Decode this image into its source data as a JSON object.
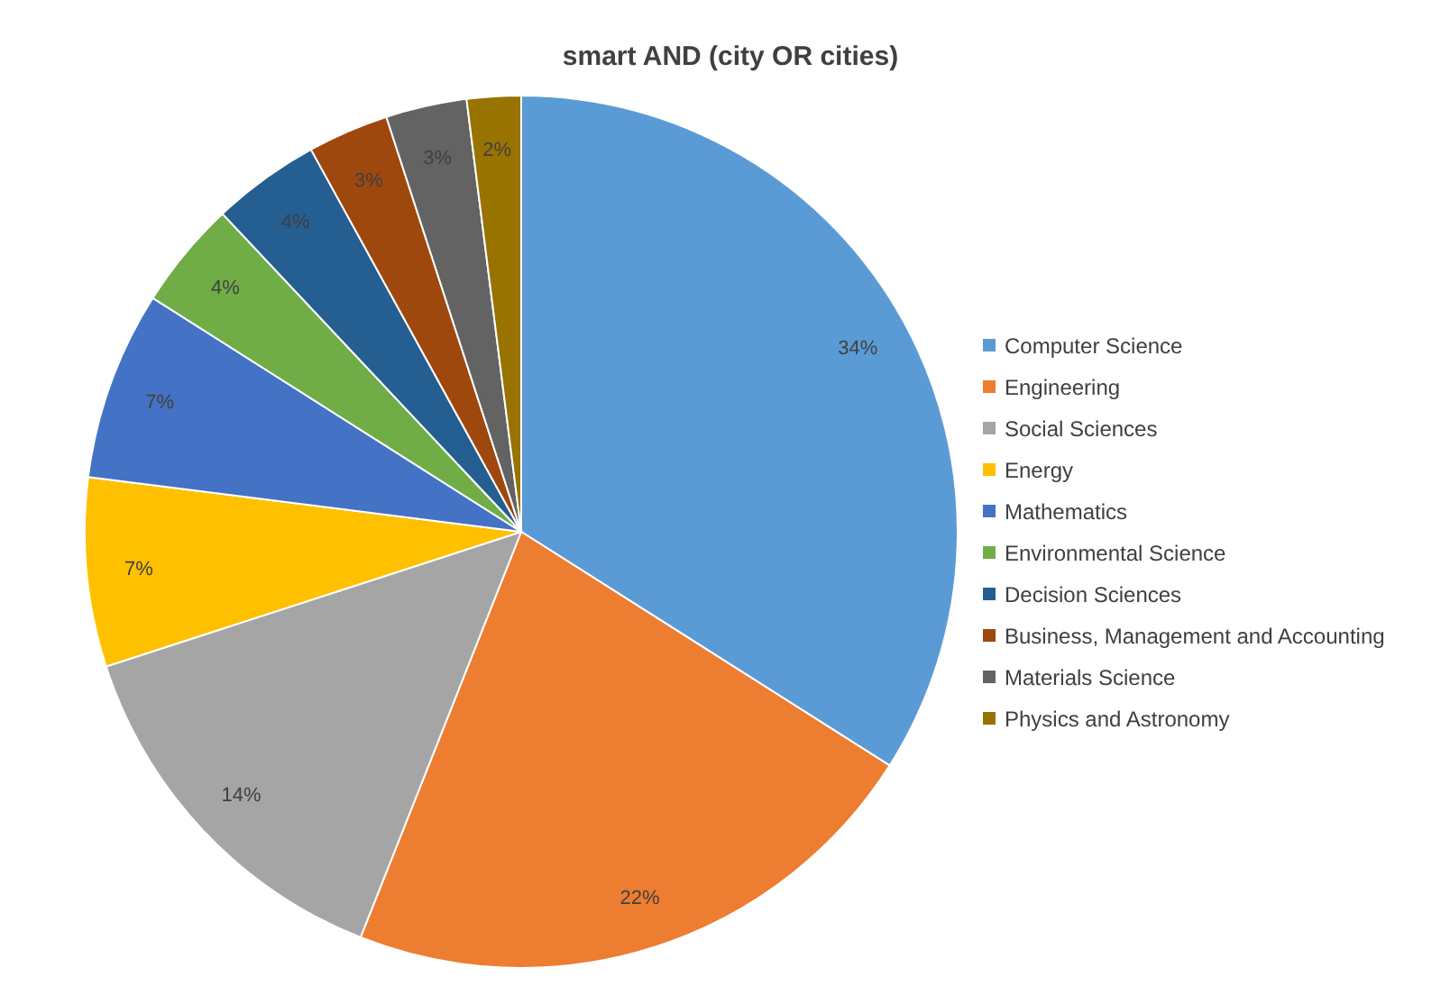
{
  "chart_data": {
    "type": "pie",
    "title": "smart AND (city OR cities)",
    "categories": [
      "Computer Science",
      "Engineering",
      "Social Sciences",
      "Energy",
      "Mathematics",
      "Environmental Science",
      "Decision Sciences",
      "Business, Management and Accounting",
      "Materials Science",
      "Physics and Astronomy"
    ],
    "values": [
      34,
      22,
      14,
      7,
      7,
      4,
      4,
      3,
      3,
      2
    ],
    "colors": [
      "#5b9bd5",
      "#ed7d31",
      "#a5a5a5",
      "#ffc000",
      "#4472c4",
      "#70ad47",
      "#255e91",
      "#9e480e",
      "#636363",
      "#997300"
    ],
    "value_labels": [
      "34%",
      "22%",
      "14%",
      "7%",
      "7%",
      "4%",
      "4%",
      "3%",
      "3%",
      "2%"
    ],
    "legend": "right"
  }
}
